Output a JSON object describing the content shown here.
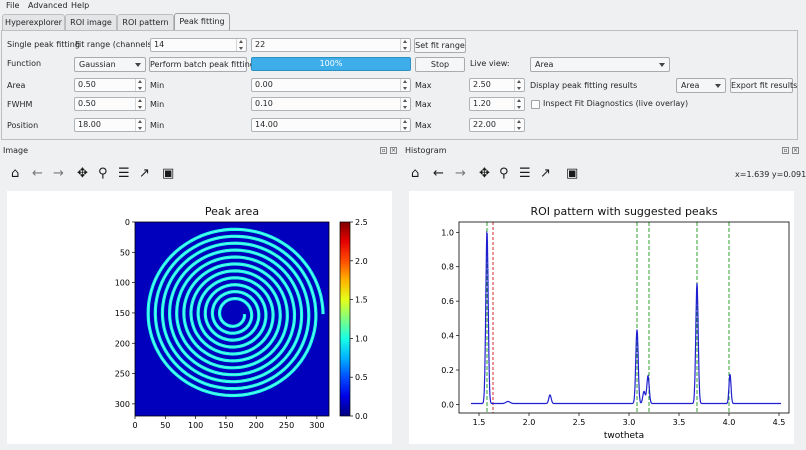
{
  "menu": {
    "file": "File",
    "advanced": "Advanced",
    "help": "Help"
  },
  "tabs": [
    "Hyperexplorer",
    "ROI image",
    "ROI pattern",
    "Peak fitting"
  ],
  "fitting": {
    "single_peak_label": "Single peak fitting",
    "fit_range_label": "Fit range (channels):",
    "fit_range_min": "14",
    "fit_range_max": "22",
    "set_fit_range": "Set fit range",
    "function_label": "Function",
    "function_value": "Gaussian",
    "perform_batch": "Perform batch peak fitting",
    "progress_text": "100%",
    "progress_value": 1.0,
    "stop": "Stop",
    "live_view_label": "Live view:",
    "live_view_value": "Area",
    "rows": [
      {
        "name": "Area",
        "value": "0.50",
        "min_label": "Min",
        "min": "0.00",
        "max_label": "Max",
        "max": "2.50"
      },
      {
        "name": "FWHM",
        "value": "0.50",
        "min_label": "Min",
        "min": "0.10",
        "max_label": "Max",
        "max": "1.20"
      },
      {
        "name": "Position",
        "value": "18.00",
        "min_label": "Min",
        "min": "14.00",
        "max_label": "Max",
        "max": "22.00"
      }
    ],
    "display_results_label": "Display peak fitting results",
    "display_results_value": "Area",
    "export_fit": "Export fit results",
    "inspect_label": "Inspect Fit Diagnostics (live overlay)"
  },
  "image_dock": {
    "title": "Image"
  },
  "histogram_dock": {
    "title": "Histogram",
    "coords": "x=1.639 y=0.091"
  },
  "chart_data": [
    {
      "type": "heatmap",
      "title": "Peak area",
      "xlim": [
        0,
        320
      ],
      "ylim": [
        320,
        0
      ],
      "xticks": [
        "0",
        "50",
        "100",
        "150",
        "200",
        "250",
        "300"
      ],
      "yticks": [
        "0",
        "50",
        "100",
        "150",
        "200",
        "250",
        "300"
      ],
      "colorbar": {
        "min": 0.0,
        "max": 2.5,
        "ticks": [
          "0.0",
          "0.5",
          "1.0",
          "1.5",
          "2.0",
          "2.5"
        ],
        "colormap": "jet"
      },
      "background_value": 0.15,
      "spiral_value": 1.0,
      "spiral_center": [
        163,
        152
      ],
      "spiral_turns": 11
    },
    {
      "type": "line",
      "title": "ROI pattern with suggested peaks",
      "xlabel": "twotheta",
      "xlim": [
        1.3,
        4.6
      ],
      "ylim": [
        -0.05,
        1.06
      ],
      "xticks": [
        "1.5",
        "2.0",
        "2.5",
        "3.0",
        "3.5",
        "4.0",
        "4.5"
      ],
      "yticks": [
        "0.0",
        "0.2",
        "0.4",
        "0.6",
        "0.8",
        "1.0"
      ],
      "series": [
        {
          "color": "#1f1fd0",
          "baseline": 0.005,
          "peaks": [
            {
              "x": 1.58,
              "height": 1.0,
              "width": 0.012
            },
            {
              "x": 1.79,
              "height": 0.012,
              "width": 0.02
            },
            {
              "x": 2.21,
              "height": 0.05,
              "width": 0.012
            },
            {
              "x": 3.08,
              "height": 0.43,
              "width": 0.012
            },
            {
              "x": 3.15,
              "height": 0.07,
              "width": 0.012
            },
            {
              "x": 3.19,
              "height": 0.16,
              "width": 0.012
            },
            {
              "x": 3.68,
              "height": 0.7,
              "width": 0.012
            },
            {
              "x": 4.01,
              "height": 0.17,
              "width": 0.01
            }
          ]
        }
      ],
      "suggested_peaks": [
        1.58,
        3.08,
        3.2,
        3.68,
        4.0
      ],
      "suggested_color": "#2ca02c",
      "selected_peak": 1.64,
      "selected_color": "#d62728"
    }
  ],
  "colors": {
    "accent": "#3daee9",
    "plot_bg": "#ffffff"
  }
}
